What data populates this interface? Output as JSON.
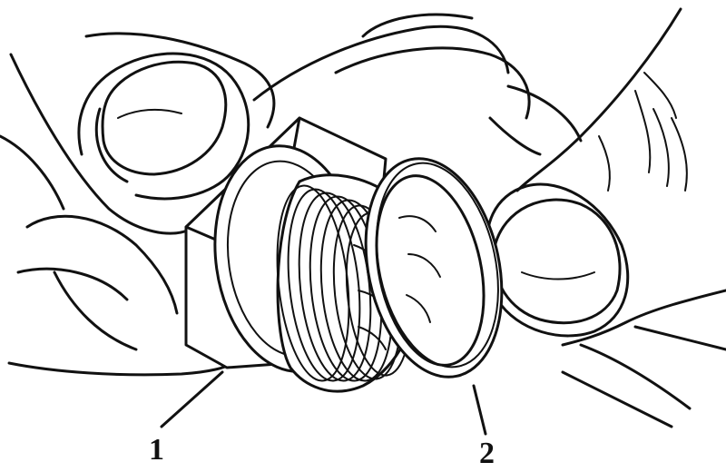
{
  "callouts": [
    {
      "label": "1"
    },
    {
      "label": "2"
    }
  ],
  "colors": {
    "ink": "#111111",
    "paper": "#ffffff"
  }
}
